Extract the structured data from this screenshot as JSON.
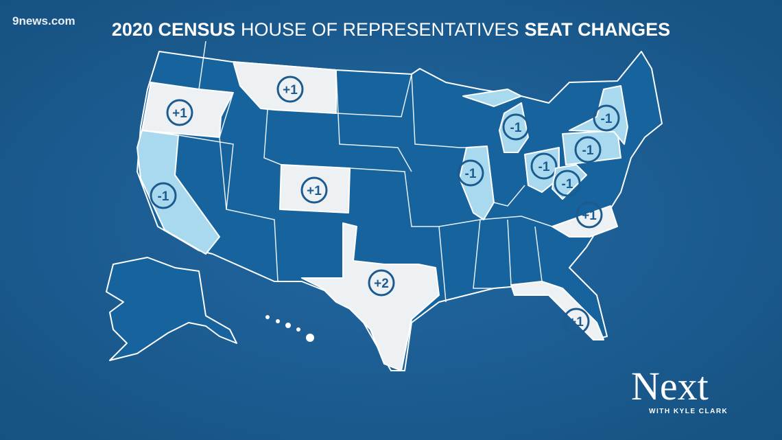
{
  "logo": "9news.com",
  "title": {
    "part1": "2020 CENSUS",
    "part2": "HOUSE OF REPRESENTATIVES",
    "part3": "SEAT CHANGES"
  },
  "map": {
    "labels": [
      "+1",
      "+1",
      "-1",
      "+1",
      "+2",
      "-1",
      "-1",
      "-1",
      "-1",
      "-1",
      "-1",
      "+1",
      "+1"
    ]
  },
  "branding": {
    "name": "Next",
    "tagline": "WITH KYLE CLARK"
  }
}
